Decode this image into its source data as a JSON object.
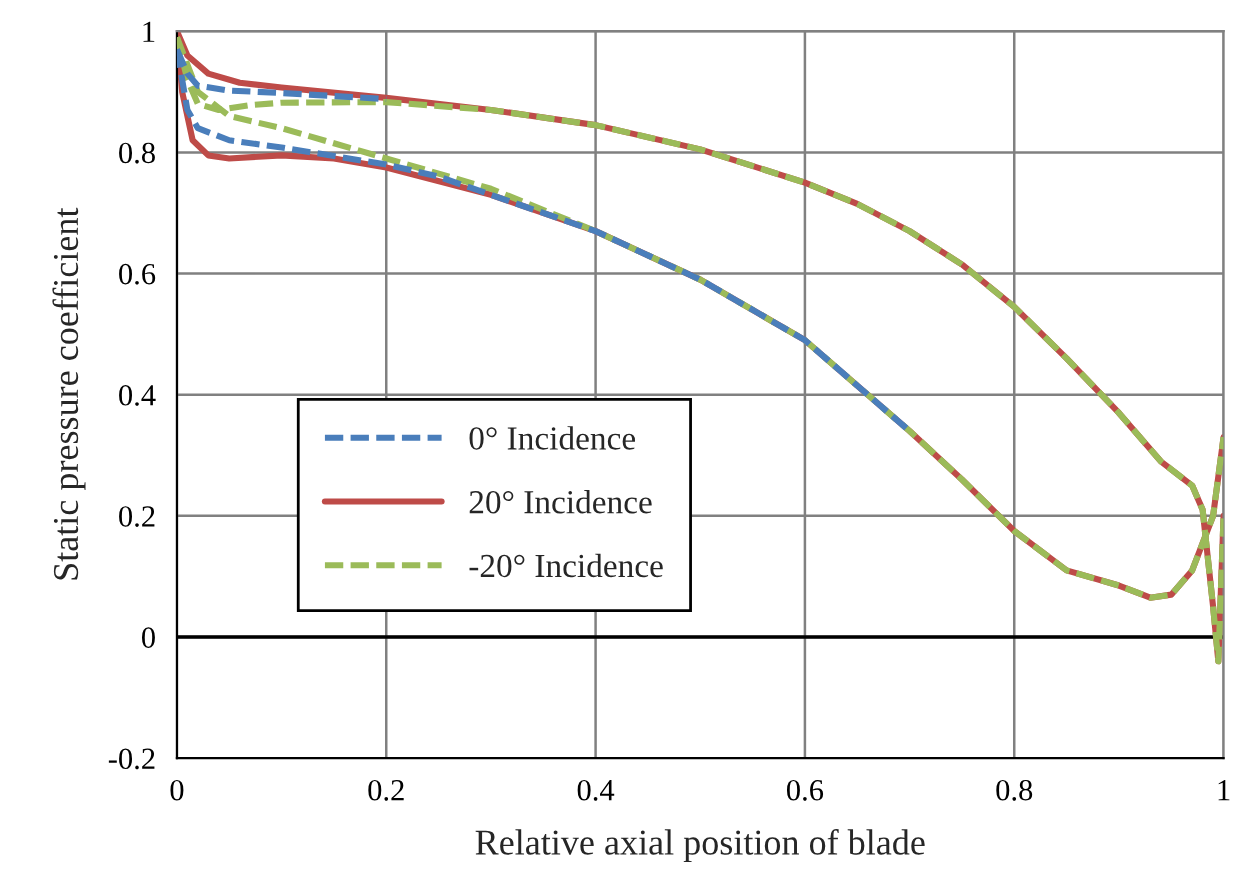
{
  "chart_data": {
    "type": "line",
    "xlabel": "Relative axial position of blade",
    "ylabel": "Static pressure coefficient",
    "xlim": [
      0,
      1
    ],
    "ylim": [
      -0.2,
      1
    ],
    "xticks": [
      0,
      0.2,
      0.4,
      0.6,
      0.8,
      1
    ],
    "yticks": [
      -0.2,
      0,
      0.2,
      0.4,
      0.6,
      0.8,
      1
    ],
    "grid": true,
    "legend": "lower left",
    "marker": "none",
    "ref_lines": [
      {
        "axis": "y",
        "value": 0,
        "color": "#000000",
        "line_style": "solid"
      }
    ],
    "series": [
      {
        "name": "0° Incidence",
        "color": "#4a7ebb",
        "line_style": "dashed",
        "x": [
          0,
          0.01,
          0.02,
          0.05,
          0.1,
          0.2
        ],
        "values": [
          0.97,
          0.93,
          0.91,
          0.902,
          0.898,
          0.888
        ]
      },
      {
        "color": "#4a7ebb",
        "line_style": "dashed",
        "x": [
          0,
          0.01,
          0.02,
          0.05,
          0.1,
          0.2,
          0.25,
          0.3,
          0.4,
          0.5,
          0.6,
          0.7
        ],
        "values": [
          0.97,
          0.87,
          0.84,
          0.82,
          0.808,
          0.78,
          0.76,
          0.73,
          0.67,
          0.59,
          0.49,
          0.34
        ]
      },
      {
        "name": "20° Incidence",
        "color": "#be4b48",
        "line_style": "solid",
        "x": [
          0,
          0.01,
          0.03,
          0.06,
          0.1,
          0.2,
          0.3,
          0.4,
          0.5,
          0.6,
          0.65,
          0.7,
          0.75,
          0.8,
          0.85,
          0.9,
          0.94,
          0.97,
          0.98,
          0.99,
          0.995,
          1.0
        ],
        "values": [
          1.0,
          0.96,
          0.93,
          0.915,
          0.907,
          0.89,
          0.87,
          0.845,
          0.805,
          0.75,
          0.715,
          0.67,
          0.615,
          0.545,
          0.46,
          0.37,
          0.29,
          0.25,
          0.21,
          0.05,
          -0.04,
          0.2
        ]
      },
      {
        "color": "#be4b48",
        "line_style": "solid",
        "x": [
          0,
          0.005,
          0.015,
          0.03,
          0.05,
          0.1,
          0.15,
          0.2,
          0.3,
          0.4,
          0.5,
          0.6,
          0.7,
          0.75,
          0.8,
          0.85,
          0.9,
          0.93,
          0.95,
          0.97,
          0.99,
          1.0
        ],
        "values": [
          1.0,
          0.9,
          0.82,
          0.795,
          0.79,
          0.795,
          0.79,
          0.775,
          0.73,
          0.67,
          0.59,
          0.49,
          0.34,
          0.26,
          0.175,
          0.11,
          0.085,
          0.065,
          0.07,
          0.11,
          0.2,
          0.33
        ]
      },
      {
        "name": "-20° Incidence",
        "color": "#9bbb59",
        "line_style": "dashed",
        "x": [
          0,
          0.01,
          0.02,
          0.04,
          0.07,
          0.1,
          0.2,
          0.3,
          0.4,
          0.5,
          0.6,
          0.65,
          0.7,
          0.75,
          0.8,
          0.85,
          0.9,
          0.94,
          0.97,
          0.98,
          0.99,
          0.995,
          1.0
        ],
        "values": [
          0.99,
          0.92,
          0.88,
          0.87,
          0.878,
          0.882,
          0.883,
          0.87,
          0.845,
          0.805,
          0.75,
          0.715,
          0.67,
          0.615,
          0.545,
          0.46,
          0.37,
          0.29,
          0.25,
          0.21,
          0.05,
          -0.04,
          0.2
        ]
      },
      {
        "color": "#9bbb59",
        "line_style": "dashed",
        "x": [
          0,
          0.02,
          0.05,
          0.1,
          0.2,
          0.3,
          0.4,
          0.5,
          0.6,
          0.7,
          0.75,
          0.8,
          0.85,
          0.9,
          0.93,
          0.95,
          0.97,
          0.99,
          1.0
        ],
        "values": [
          0.99,
          0.9,
          0.86,
          0.84,
          0.79,
          0.74,
          0.67,
          0.59,
          0.49,
          0.34,
          0.26,
          0.175,
          0.11,
          0.085,
          0.065,
          0.07,
          0.11,
          0.2,
          0.33
        ]
      }
    ]
  }
}
